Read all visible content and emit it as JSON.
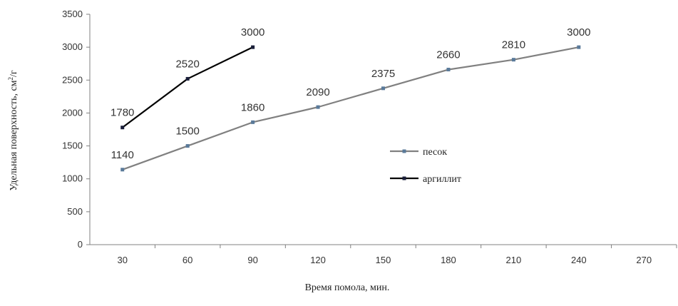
{
  "chart_data": {
    "type": "line",
    "title": "",
    "xlabel": "Время помола, мин.",
    "ylabel_main": "Удельная поверхность, см",
    "ylabel_sup": "2",
    "ylabel_tail": "/г",
    "x_ticks": [
      "30",
      "60",
      "90",
      "120",
      "150",
      "180",
      "210",
      "240",
      "270"
    ],
    "xlim": [
      15,
      285
    ],
    "y_ticks": [
      "0",
      "500",
      "1000",
      "1500",
      "2000",
      "2500",
      "3000",
      "3500"
    ],
    "ylim": [
      0,
      3500
    ],
    "grid": false,
    "legend": "right-middle",
    "series": [
      {
        "name": "песок",
        "color": "#808080",
        "marker_color": "#5a7a9a",
        "x": [
          30,
          60,
          90,
          120,
          150,
          180,
          210,
          240
        ],
        "values": [
          1140,
          1500,
          1860,
          2090,
          2375,
          2660,
          2810,
          3000
        ],
        "labels": [
          "1140",
          "1500",
          "1860",
          "2090",
          "2375",
          "2660",
          "2810",
          "3000"
        ]
      },
      {
        "name": "аргиллит",
        "color": "#000000",
        "marker_color": "#1a1f3a",
        "x": [
          30,
          60,
          90
        ],
        "values": [
          1780,
          2520,
          3000
        ],
        "labels": [
          "1780",
          "2520",
          "3000"
        ]
      }
    ]
  }
}
